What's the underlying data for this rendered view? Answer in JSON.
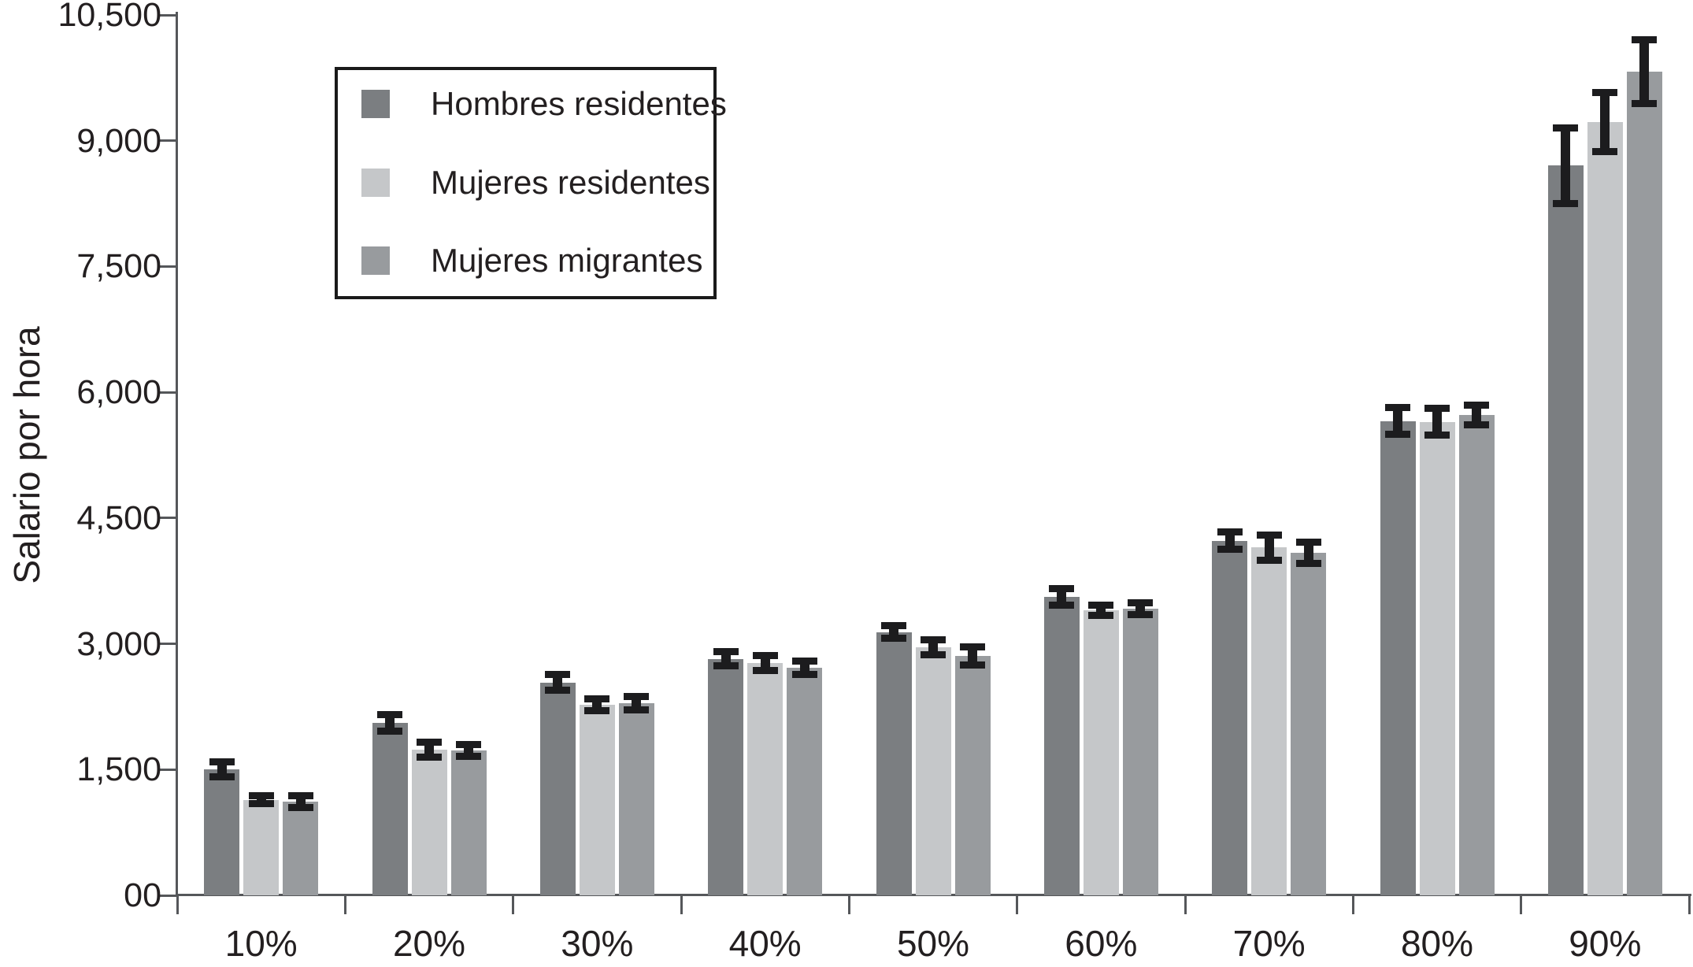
{
  "chart_data": {
    "type": "bar",
    "title": "",
    "categories": [
      "10%",
      "20%",
      "30%",
      "40%",
      "50%",
      "60%",
      "70%",
      "80%",
      "90%"
    ],
    "series": [
      {
        "name": "Hombres residentes",
        "color": "#7b7e81",
        "values": [
          1505,
          2055,
          2540,
          2820,
          3140,
          3560,
          4230,
          5655,
          8705
        ],
        "errors": [
          90,
          100,
          90,
          85,
          75,
          100,
          100,
          160,
          450
        ]
      },
      {
        "name": "Mujeres residentes",
        "color": "#c5c7c9",
        "values": [
          1140,
          1740,
          2270,
          2770,
          2960,
          3400,
          4150,
          5645,
          9225
        ],
        "errors": [
          50,
          90,
          70,
          90,
          90,
          60,
          150,
          160,
          350
        ]
      },
      {
        "name": "Mujeres migrantes",
        "color": "#989b9e",
        "values": [
          1120,
          1730,
          2290,
          2715,
          2855,
          3415,
          4085,
          5730,
          9820
        ],
        "errors": [
          70,
          70,
          80,
          80,
          110,
          70,
          130,
          120,
          380
        ]
      }
    ],
    "xlabel": "",
    "ylabel": "Salario por hora",
    "ylim": [
      0,
      10500
    ],
    "ytick_step": 1500,
    "ytick_labels": [
      "00",
      "1,500",
      "3,000",
      "4,500",
      "6,000",
      "7,500",
      "9,000",
      "10,500"
    ],
    "grid": false,
    "legend_position": "top-left",
    "error_bar_color": "#1c1c1e",
    "axis_color": "#55575a",
    "text_color": "#231f20"
  }
}
